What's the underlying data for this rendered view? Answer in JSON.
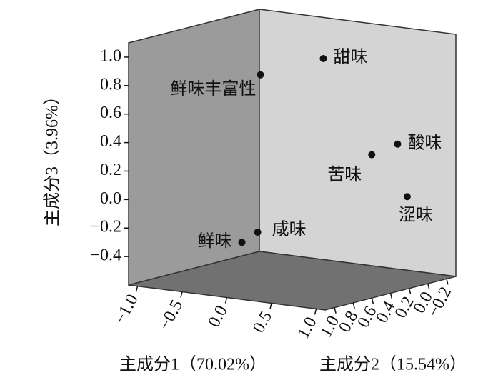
{
  "chart_data": {
    "type": "scatter3d",
    "xlabel": "主成分1（70.02%）",
    "ylabel": "主成分2（15.54%）",
    "zlabel": "主成分3（3.96%）",
    "xlim": [
      -1.1,
      1.1
    ],
    "ylim": [
      -0.3,
      1.1
    ],
    "zlim": [
      -0.6,
      1.1
    ],
    "xticks": [
      {
        "value": -1.0,
        "label": "−1.0"
      },
      {
        "value": -0.5,
        "label": "−0.5"
      },
      {
        "value": 0,
        "label": "0.0"
      },
      {
        "value": 0.5,
        "label": "0.5"
      },
      {
        "value": 1.0,
        "label": "1.0"
      }
    ],
    "yticks": [
      {
        "value": 1.0,
        "label": "1.0"
      },
      {
        "value": 0.8,
        "label": "0.8"
      },
      {
        "value": 0.6,
        "label": "0.6"
      },
      {
        "value": 0.4,
        "label": "0.4"
      },
      {
        "value": 0.2,
        "label": "0.2"
      },
      {
        "value": 0,
        "label": "0.0"
      },
      {
        "value": -0.2,
        "label": "−0.2"
      }
    ],
    "zticks": [
      {
        "value": 1.0,
        "label": "1.0"
      },
      {
        "value": 0.8,
        "label": "0.8"
      },
      {
        "value": 0.6,
        "label": "0.6"
      },
      {
        "value": 0.4,
        "label": "0.4"
      },
      {
        "value": 0.2,
        "label": "0.2"
      },
      {
        "value": 0,
        "label": "0.0"
      },
      {
        "value": -0.2,
        "label": "−0.2"
      },
      {
        "value": -0.4,
        "label": "−0.4"
      }
    ],
    "color": "#111111",
    "points": [
      {
        "label": "甜味",
        "x": 0.4,
        "y": 0.45,
        "z": 1.0
      },
      {
        "label": "鲜味丰富性",
        "x": -0.22,
        "y": 0.53,
        "z": 0.85
      },
      {
        "label": "酸味",
        "x": 0.96,
        "y": 0.19,
        "z": 0.4
      },
      {
        "label": "苦味",
        "x": 0.66,
        "y": 0.18,
        "z": 0.3
      },
      {
        "label": "涩味",
        "x": 0.9,
        "y": 0.03,
        "z": 0.0
      },
      {
        "label": "咸味",
        "x": -0.22,
        "y": 0.56,
        "z": -0.25
      },
      {
        "label": "鲜味",
        "x": -0.25,
        "y": 0.7,
        "z": -0.3
      }
    ]
  }
}
